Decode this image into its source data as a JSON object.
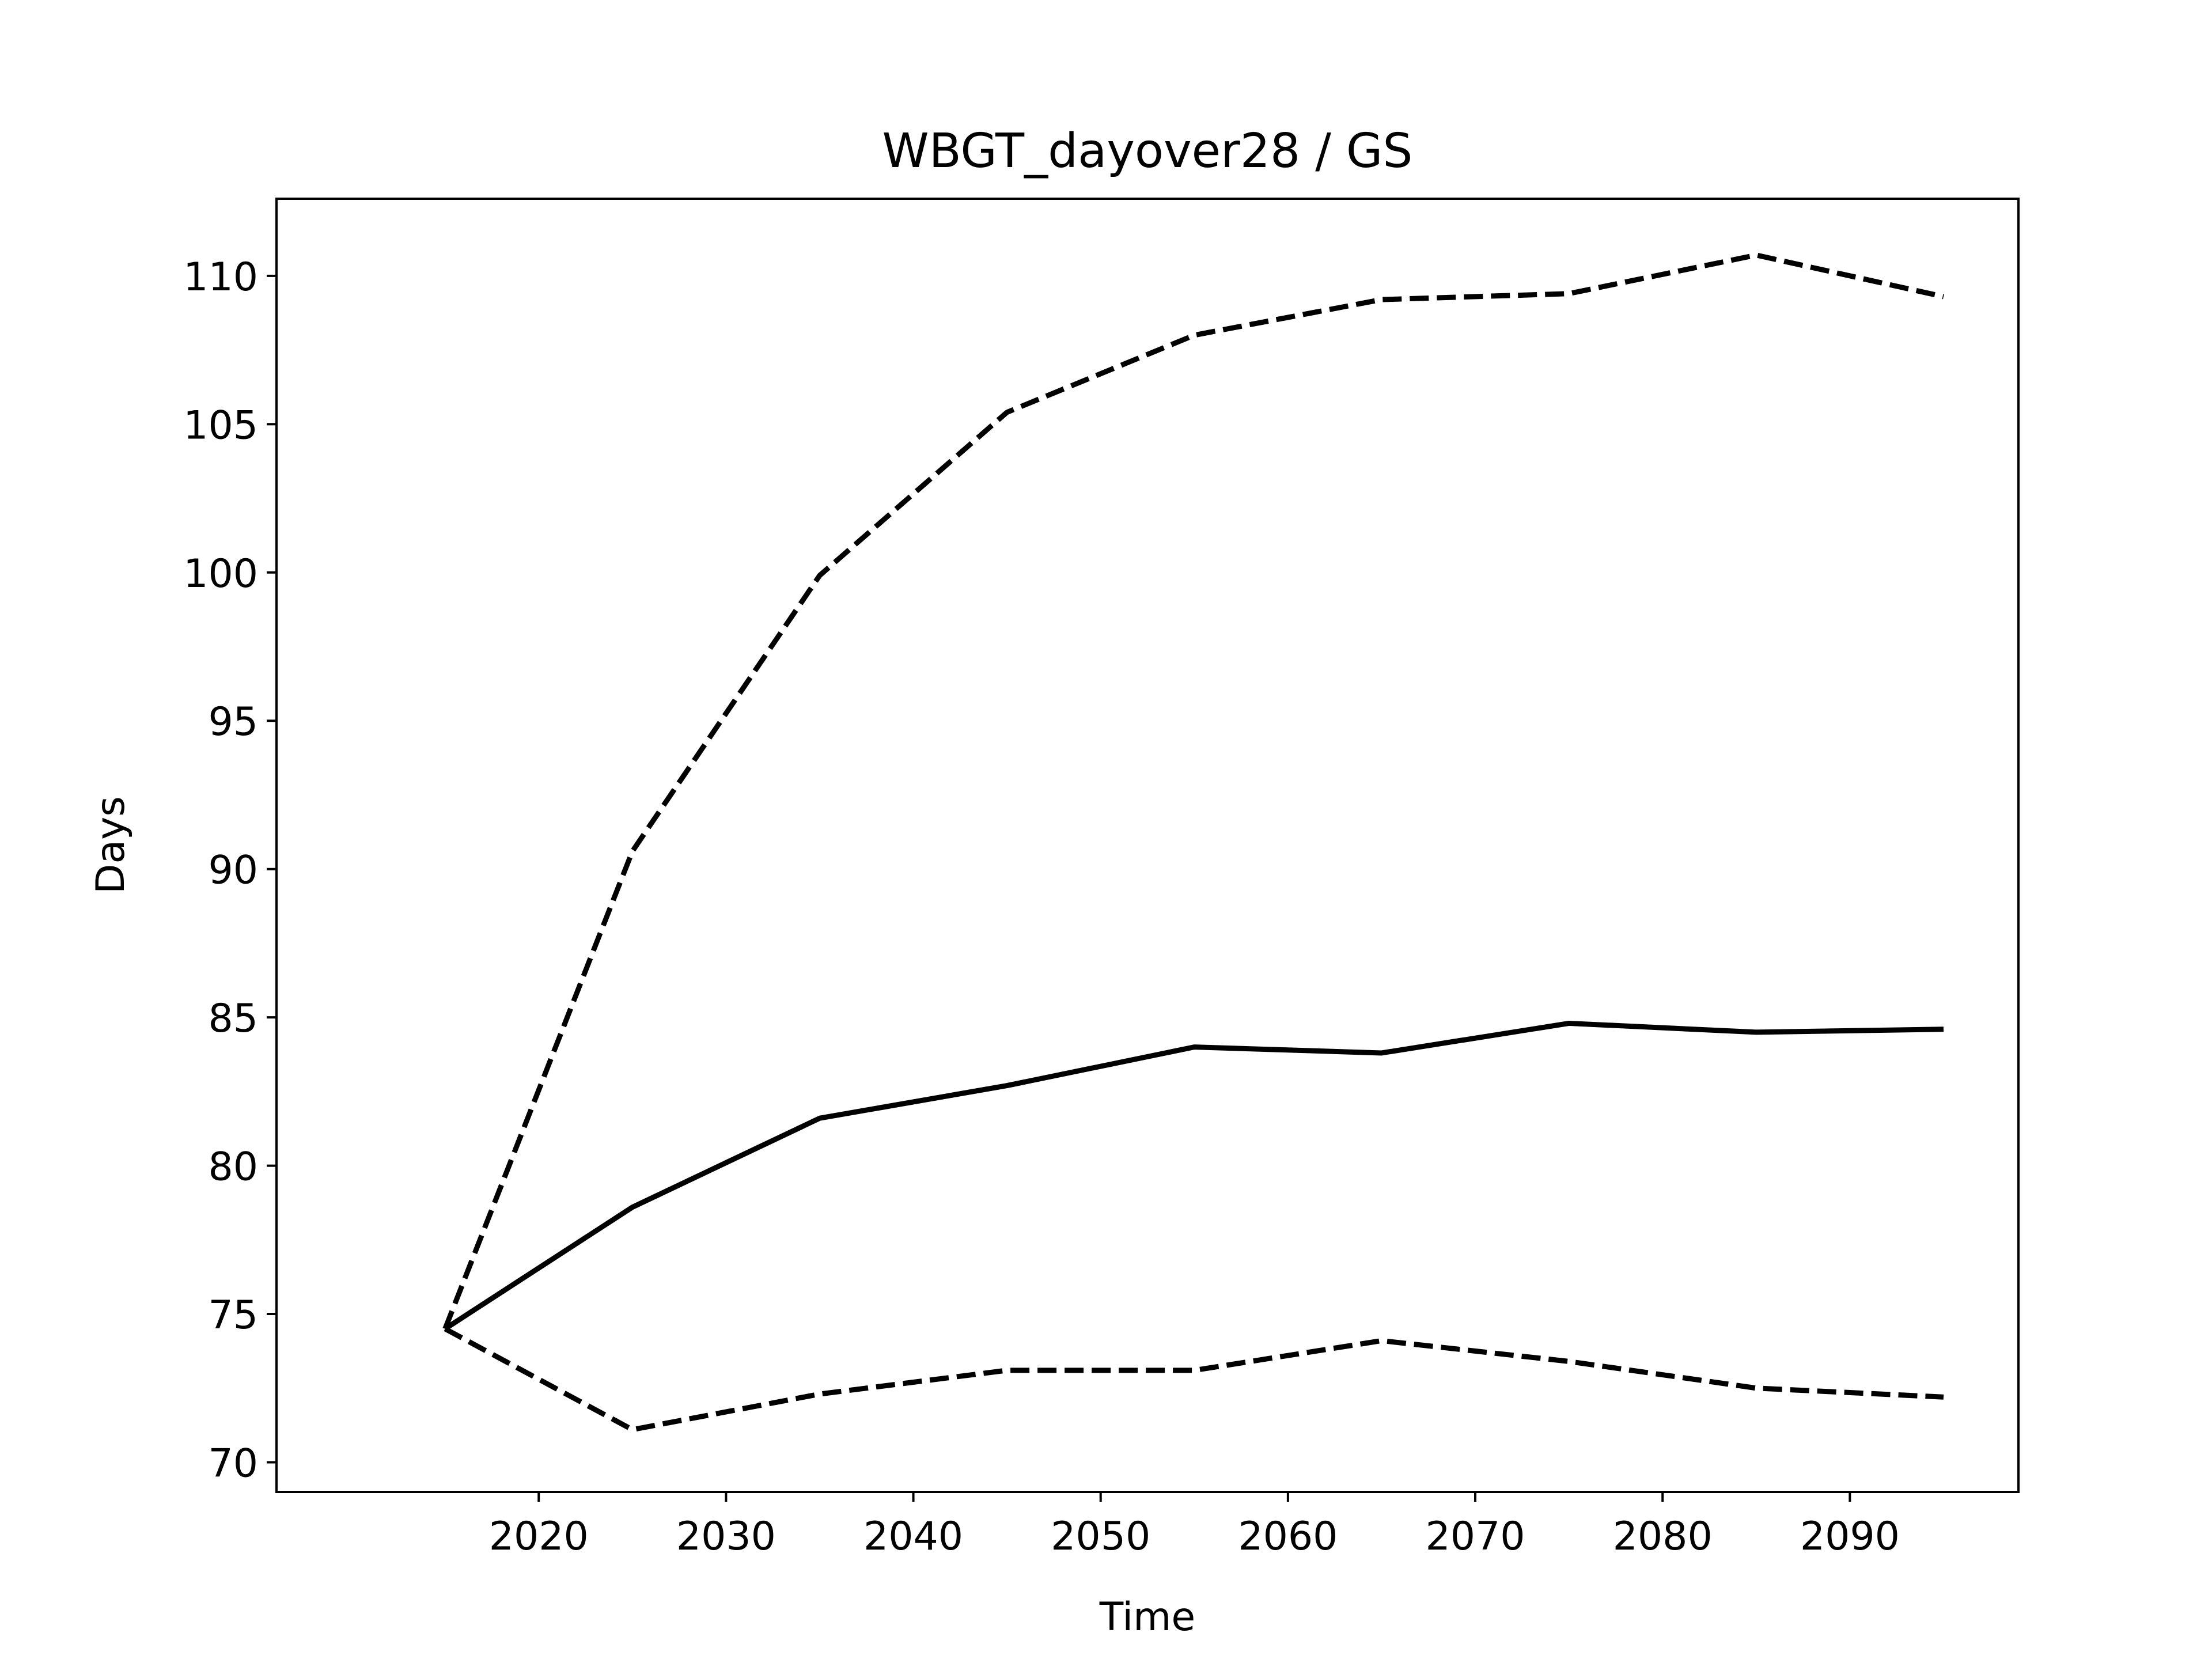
{
  "chart_data": {
    "type": "line",
    "title": "WBGT_dayover28 / GS",
    "xlabel": "Time",
    "ylabel": "Days",
    "x": [
      2015,
      2025,
      2035,
      2045,
      2055,
      2065,
      2075,
      2085,
      2095
    ],
    "xlim": [
      2006,
      2099
    ],
    "ylim": [
      69,
      112.6
    ],
    "xticks": [
      2020,
      2030,
      2040,
      2050,
      2060,
      2070,
      2080,
      2090
    ],
    "yticks": [
      70,
      75,
      80,
      85,
      90,
      95,
      100,
      105,
      110
    ],
    "grid": false,
    "series": [
      {
        "style": "solid",
        "color": "#000000",
        "values": [
          74.5,
          78.6,
          81.6,
          82.7,
          84.0,
          83.8,
          84.8,
          84.5,
          84.6
        ]
      },
      {
        "style": "dashed",
        "color": "#000000",
        "values": [
          74.5,
          90.6,
          99.9,
          105.4,
          108.0,
          109.2,
          109.4,
          110.7,
          109.3
        ]
      },
      {
        "style": "dashed",
        "color": "#000000",
        "values": [
          74.5,
          71.1,
          72.3,
          73.1,
          73.1,
          74.1,
          73.4,
          72.5,
          72.2
        ]
      }
    ]
  }
}
